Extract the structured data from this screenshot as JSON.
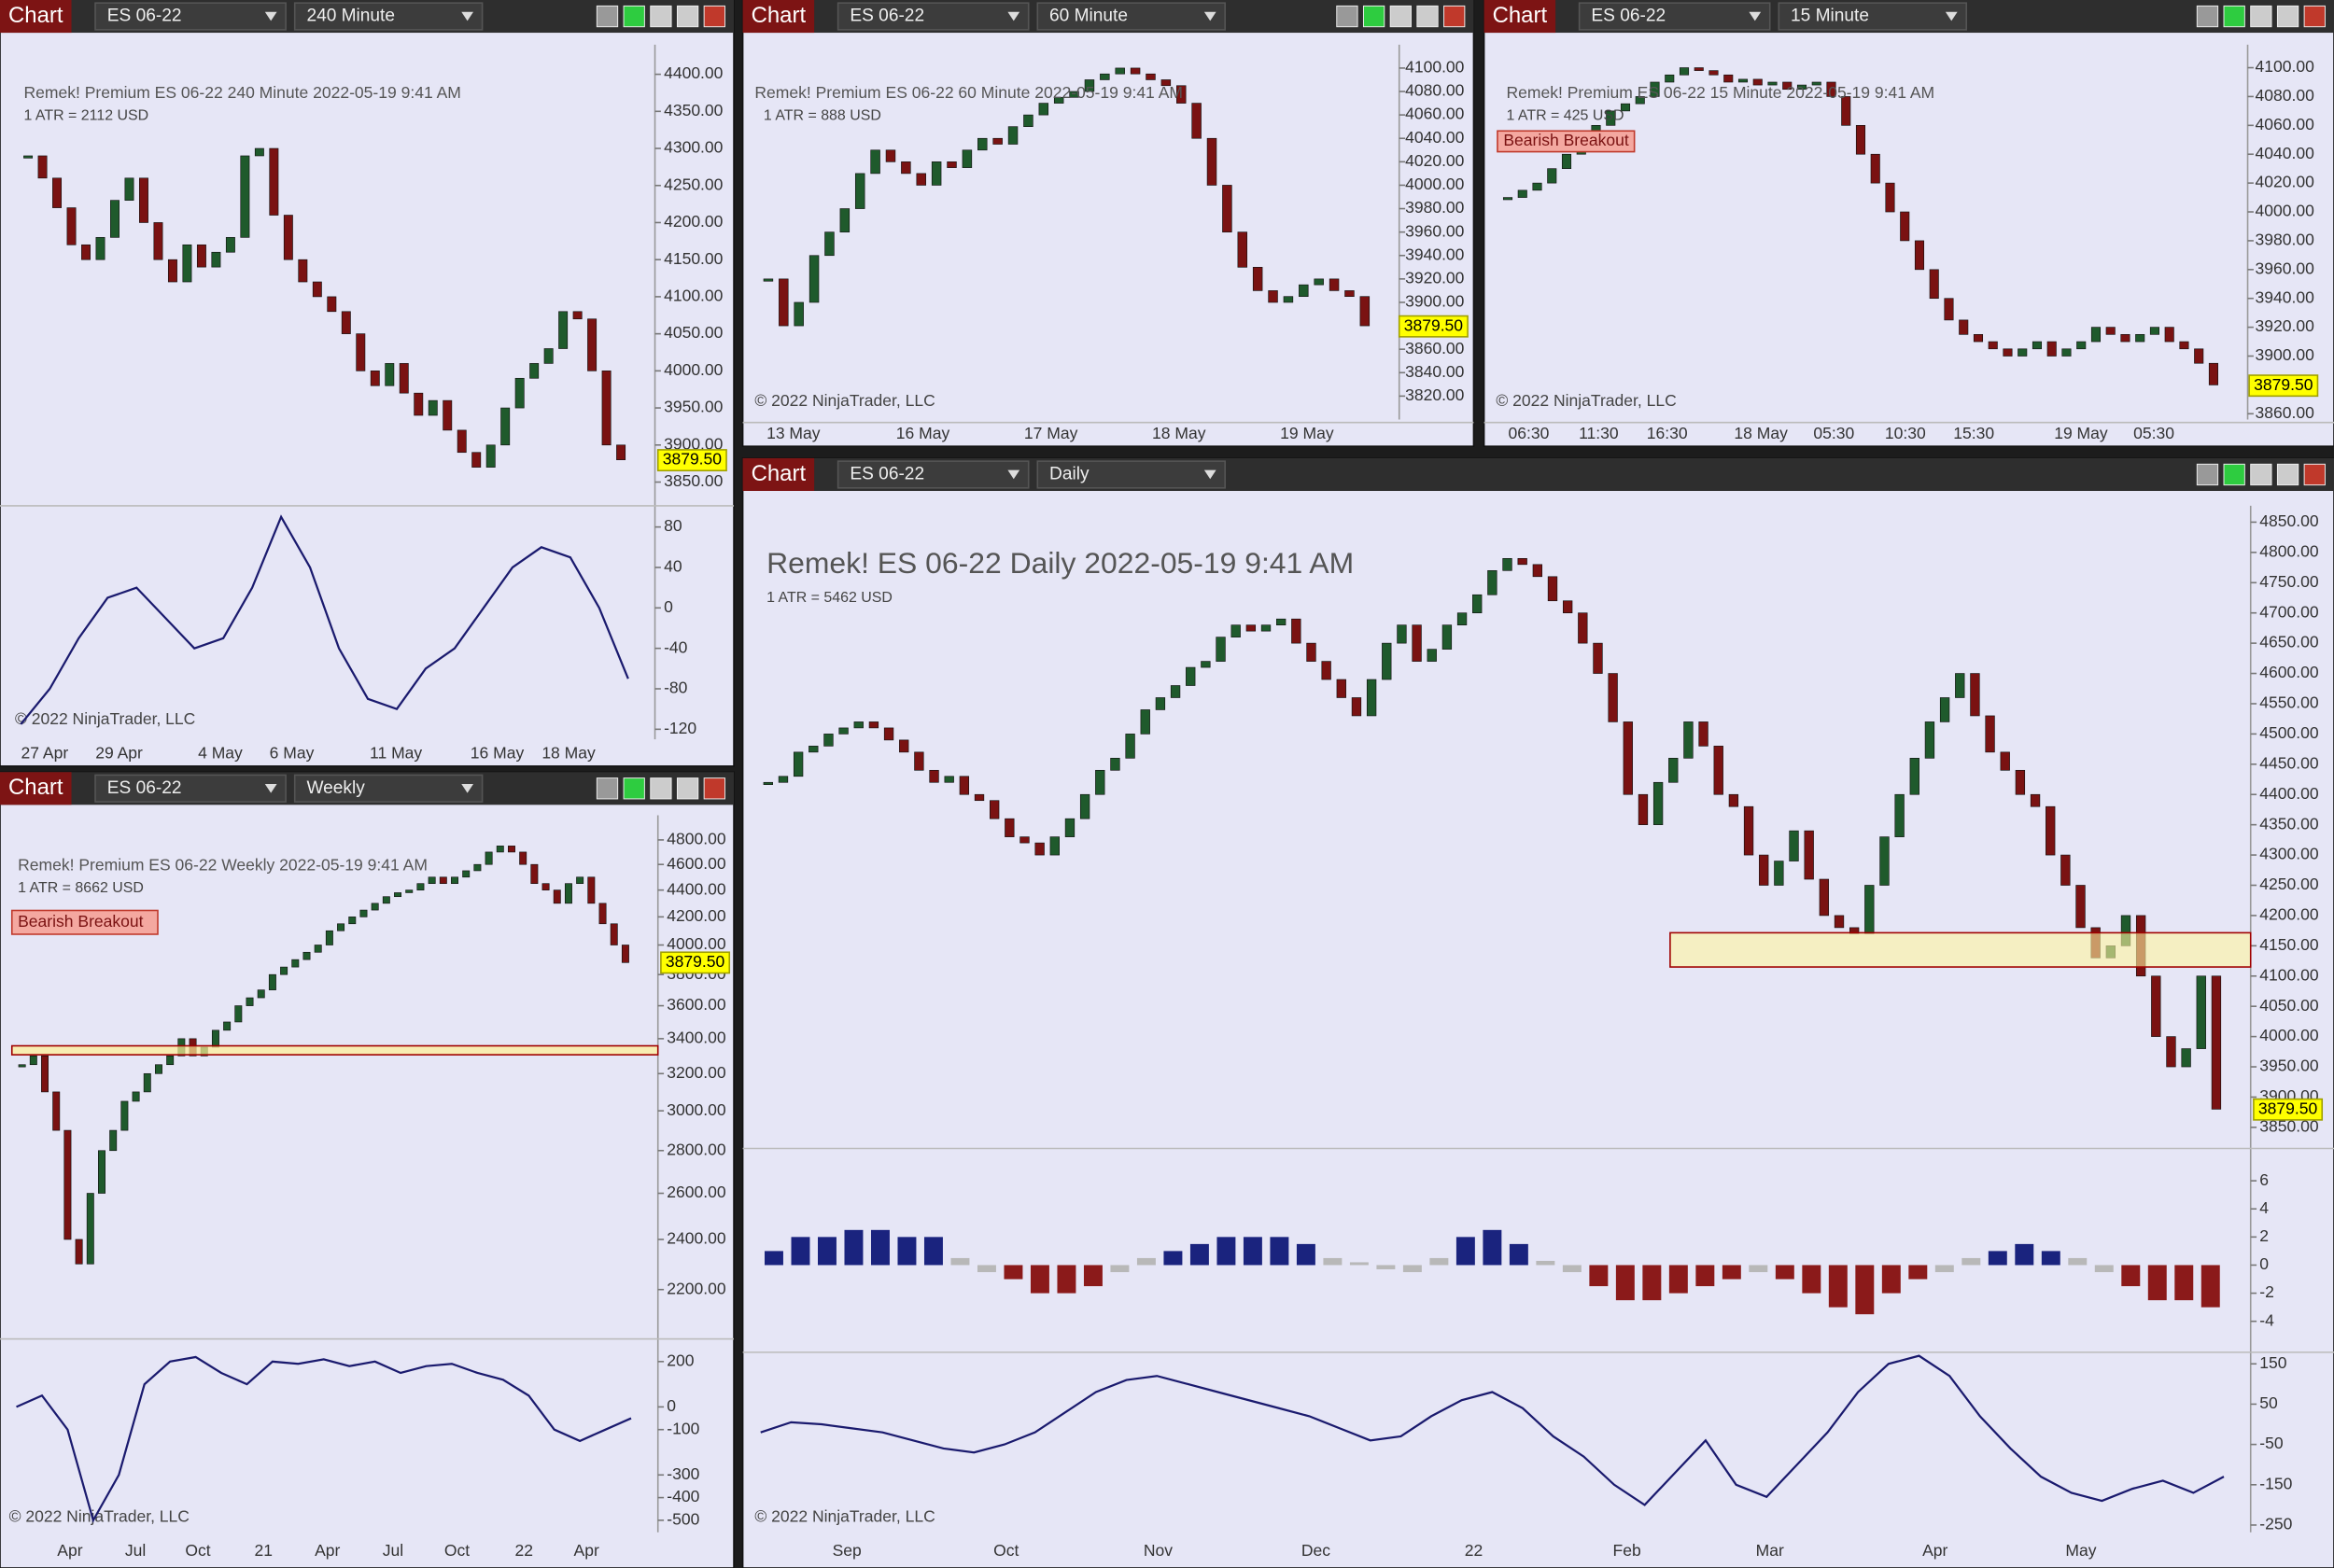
{
  "windows": [
    {
      "toolbar": {
        "label": "Chart",
        "instrument": "ES 06-22",
        "interval": "240 Minute"
      },
      "header": "Remek!  Premium  ES 06-22  240 Minute  2022-05-19 9:41 AM",
      "atr": "1 ATR = 2112 USD",
      "copyright": "© 2022 NinjaTrader, LLC",
      "price_flag": {
        "value": 3879.5,
        "label": "3879.50"
      },
      "price_axis": {
        "ylim": [
          3822,
          4440
        ],
        "ticks": [
          {
            "value": 4400,
            "label": "4400.00"
          },
          {
            "value": 4350,
            "label": "4350.00"
          },
          {
            "value": 4300,
            "label": "4300.00"
          },
          {
            "value": 4250,
            "label": "4250.00"
          },
          {
            "value": 4200,
            "label": "4200.00"
          },
          {
            "value": 4150,
            "label": "4150.00"
          },
          {
            "value": 4100,
            "label": "4100.00"
          },
          {
            "value": 4050,
            "label": "4050.00"
          },
          {
            "value": 4000,
            "label": "4000.00"
          },
          {
            "value": 3950,
            "label": "3950.00"
          },
          {
            "value": 3900,
            "label": "3900.00"
          },
          {
            "value": 3850,
            "label": "3850.00"
          }
        ]
      },
      "time_axis": [
        "27 Apr",
        "29 Apr",
        "4 May",
        "6 May",
        "11 May",
        "16 May",
        "18 May"
      ],
      "closes": [
        4290,
        4260,
        4220,
        4170,
        4150,
        4180,
        4230,
        4260,
        4200,
        4150,
        4120,
        4170,
        4140,
        4160,
        4180,
        4290,
        4300,
        4210,
        4150,
        4120,
        4100,
        4080,
        4050,
        4000,
        3980,
        4010,
        3970,
        3940,
        3960,
        3920,
        3890,
        3870,
        3900,
        3950,
        3990,
        4010,
        4030,
        4080,
        4070,
        4000,
        3900,
        3880
      ],
      "oscillator": {
        "ylim": [
          -130,
          98
        ],
        "ticks": [
          80,
          40,
          0,
          -40,
          -80,
          -120
        ],
        "values": [
          -115,
          -80,
          -30,
          10,
          20,
          -10,
          -40,
          -30,
          20,
          90,
          40,
          -40,
          -90,
          -100,
          -60,
          -40,
          0,
          40,
          60,
          50,
          0,
          -70
        ]
      }
    },
    {
      "toolbar": {
        "label": "Chart",
        "instrument": "ES 06-22",
        "interval": "60 Minute"
      },
      "header": "Remek!  Premium  ES 06-22  60 Minute  2022-05-19 9:41 AM",
      "atr": "1 ATR = 888 USD",
      "copyright": "© 2022 NinjaTrader, LLC",
      "price_flag": {
        "value": 3879.5,
        "label": "3879.50"
      },
      "price_axis": {
        "ylim": [
          3800,
          4120
        ],
        "ticks": [
          {
            "value": 4100,
            "label": "4100.00"
          },
          {
            "value": 4080,
            "label": "4080.00"
          },
          {
            "value": 4060,
            "label": "4060.00"
          },
          {
            "value": 4040,
            "label": "4040.00"
          },
          {
            "value": 4020,
            "label": "4020.00"
          },
          {
            "value": 4000,
            "label": "4000.00"
          },
          {
            "value": 3980,
            "label": "3980.00"
          },
          {
            "value": 3960,
            "label": "3960.00"
          },
          {
            "value": 3940,
            "label": "3940.00"
          },
          {
            "value": 3920,
            "label": "3920.00"
          },
          {
            "value": 3900,
            "label": "3900.00"
          },
          {
            "value": 3860,
            "label": "3860.00"
          },
          {
            "value": 3840,
            "label": "3840.00"
          },
          {
            "value": 3820,
            "label": "3820.00"
          }
        ]
      },
      "time_axis": [
        "13 May",
        "16 May",
        "17 May",
        "18 May",
        "19 May"
      ],
      "closes": [
        3920,
        3880,
        3900,
        3940,
        3960,
        3980,
        4010,
        4030,
        4020,
        4010,
        4000,
        4020,
        4015,
        4030,
        4040,
        4035,
        4050,
        4060,
        4070,
        4075,
        4080,
        4090,
        4095,
        4100,
        4095,
        4090,
        4085,
        4070,
        4040,
        4000,
        3960,
        3930,
        3910,
        3900,
        3905,
        3915,
        3920,
        3910,
        3905,
        3880
      ]
    },
    {
      "toolbar": {
        "label": "Chart",
        "instrument": "ES 06-22",
        "interval": "15 Minute"
      },
      "header": "Remek!  Premium  ES 06-22  15 Minute  2022-05-19 9:41 AM",
      "atr": "1 ATR = 425 USD",
      "annotation": "Bearish Breakout",
      "copyright": "© 2022 NinjaTrader, LLC",
      "price_flag": {
        "value": 3879.5,
        "label": "3879.50"
      },
      "price_axis": {
        "ylim": [
          3856,
          4116
        ],
        "ticks": [
          {
            "value": 4100,
            "label": "4100.00"
          },
          {
            "value": 4080,
            "label": "4080.00"
          },
          {
            "value": 4060,
            "label": "4060.00"
          },
          {
            "value": 4040,
            "label": "4040.00"
          },
          {
            "value": 4020,
            "label": "4020.00"
          },
          {
            "value": 4000,
            "label": "4000.00"
          },
          {
            "value": 3980,
            "label": "3980.00"
          },
          {
            "value": 3960,
            "label": "3960.00"
          },
          {
            "value": 3940,
            "label": "3940.00"
          },
          {
            "value": 3920,
            "label": "3920.00"
          },
          {
            "value": 3900,
            "label": "3900.00"
          },
          {
            "value": 3860,
            "label": "3860.00"
          }
        ]
      },
      "time_axis": [
        "06:30",
        "11:30",
        "16:30",
        "18 May",
        "05:30",
        "10:30",
        "15:30",
        "19 May",
        "05:30"
      ],
      "closes": [
        4010,
        4015,
        4020,
        4030,
        4040,
        4050,
        4060,
        4070,
        4075,
        4080,
        4090,
        4095,
        4100,
        4098,
        4095,
        4090,
        4092,
        4088,
        4090,
        4085,
        4088,
        4090,
        4080,
        4060,
        4040,
        4020,
        4000,
        3980,
        3960,
        3940,
        3925,
        3915,
        3910,
        3905,
        3900,
        3905,
        3910,
        3900,
        3905,
        3910,
        3920,
        3915,
        3910,
        3915,
        3920,
        3910,
        3905,
        3895,
        3880
      ]
    },
    {
      "toolbar": {
        "label": "Chart",
        "instrument": "ES 06-22",
        "interval": "Weekly"
      },
      "header": "Remek!  Premium  ES 06-22  Weekly  2022-05-19 9:41 AM",
      "atr": "1 ATR = 8662 USD",
      "annotation": "Bearish Breakout",
      "copyright": "© 2022 NinjaTrader, LLC",
      "price_flag": {
        "value": 3879.5,
        "label": "3879.50"
      },
      "price_axis": {
        "log": true,
        "ylim": [
          2030,
          5010
        ],
        "ticks": [
          {
            "value": 4800,
            "label": "4800.00"
          },
          {
            "value": 4600,
            "label": "4600.00"
          },
          {
            "value": 4400,
            "label": "4400.00"
          },
          {
            "value": 4200,
            "label": "4200.00"
          },
          {
            "value": 4000,
            "label": "4000.00"
          },
          {
            "value": 3800,
            "label": "3800.00"
          },
          {
            "value": 3600,
            "label": "3600.00"
          },
          {
            "value": 3400,
            "label": "3400.00"
          },
          {
            "value": 3200,
            "label": "3200.00"
          },
          {
            "value": 3000,
            "label": "3000.00"
          },
          {
            "value": 2800,
            "label": "2800.00"
          },
          {
            "value": 2600,
            "label": "2600.00"
          },
          {
            "value": 2400,
            "label": "2400.00"
          },
          {
            "value": 2200,
            "label": "2200.00"
          }
        ]
      },
      "time_axis": [
        "Apr",
        "Jul",
        "Oct",
        "21",
        "Apr",
        "Jul",
        "Oct",
        "22",
        "Apr"
      ],
      "closes": [
        3250,
        3300,
        3100,
        2900,
        2400,
        2300,
        2600,
        2800,
        2900,
        3050,
        3100,
        3200,
        3250,
        3300,
        3400,
        3300,
        3350,
        3450,
        3500,
        3600,
        3650,
        3700,
        3800,
        3850,
        3900,
        3950,
        4000,
        4100,
        4150,
        4200,
        4250,
        4300,
        4350,
        4380,
        4400,
        4450,
        4500,
        4450,
        4500,
        4550,
        4600,
        4700,
        4750,
        4700,
        4600,
        4450,
        4400,
        4300,
        4450,
        4500,
        4300,
        4150,
        4000,
        3880
      ],
      "oscillator": {
        "ylim": [
          -553,
          300
        ],
        "ticks": [
          200,
          0,
          -100,
          -300,
          -400,
          -500
        ],
        "values": [
          0,
          50,
          -100,
          -500,
          -300,
          100,
          200,
          220,
          150,
          100,
          200,
          190,
          210,
          180,
          200,
          150,
          180,
          190,
          150,
          120,
          50,
          -100,
          -150,
          -100,
          -50
        ]
      }
    },
    {
      "toolbar": {
        "label": "Chart",
        "instrument": "ES 06-22",
        "interval": "Daily"
      },
      "header": "Remek!  ES 06-22  Daily  2022-05-19 9:41 AM",
      "atr": "1 ATR = 5462 USD",
      "copyright": "© 2022 NinjaTrader, LLC",
      "price_flag": {
        "value": 3879.5,
        "label": "3879.50"
      },
      "price_axis": {
        "ylim": [
          3820,
          4877
        ],
        "ticks": [
          {
            "value": 4850,
            "label": "4850.00"
          },
          {
            "value": 4800,
            "label": "4800.00"
          },
          {
            "value": 4750,
            "label": "4750.00"
          },
          {
            "value": 4700,
            "label": "4700.00"
          },
          {
            "value": 4650,
            "label": "4650.00"
          },
          {
            "value": 4600,
            "label": "4600.00"
          },
          {
            "value": 4550,
            "label": "4550.00"
          },
          {
            "value": 4500,
            "label": "4500.00"
          },
          {
            "value": 4450,
            "label": "4450.00"
          },
          {
            "value": 4400,
            "label": "4400.00"
          },
          {
            "value": 4350,
            "label": "4350.00"
          },
          {
            "value": 4300,
            "label": "4300.00"
          },
          {
            "value": 4250,
            "label": "4250.00"
          },
          {
            "value": 4200,
            "label": "4200.00"
          },
          {
            "value": 4150,
            "label": "4150.00"
          },
          {
            "value": 4100,
            "label": "4100.00"
          },
          {
            "value": 4050,
            "label": "4050.00"
          },
          {
            "value": 4000,
            "label": "4000.00"
          },
          {
            "value": 3950,
            "label": "3950.00"
          },
          {
            "value": 3900,
            "label": "3900.00"
          },
          {
            "value": 3850,
            "label": "3850.00"
          }
        ]
      },
      "time_axis": [
        "Sep",
        "Oct",
        "Nov",
        "Dec",
        "22",
        "Feb",
        "Mar",
        "Apr",
        "May"
      ],
      "closes": [
        4420,
        4430,
        4470,
        4480,
        4500,
        4510,
        4520,
        4510,
        4490,
        4470,
        4440,
        4420,
        4430,
        4400,
        4390,
        4360,
        4330,
        4320,
        4300,
        4330,
        4360,
        4400,
        4440,
        4460,
        4500,
        4540,
        4560,
        4580,
        4610,
        4620,
        4660,
        4680,
        4670,
        4680,
        4690,
        4650,
        4620,
        4590,
        4560,
        4530,
        4590,
        4650,
        4680,
        4620,
        4640,
        4680,
        4700,
        4730,
        4770,
        4790,
        4780,
        4760,
        4720,
        4700,
        4650,
        4600,
        4520,
        4400,
        4350,
        4420,
        4460,
        4520,
        4480,
        4400,
        4380,
        4300,
        4250,
        4290,
        4340,
        4260,
        4200,
        4180,
        4170,
        4250,
        4330,
        4400,
        4460,
        4520,
        4560,
        4600,
        4530,
        4470,
        4440,
        4400,
        4380,
        4300,
        4250,
        4180,
        4130,
        4150,
        4200,
        4100,
        4000,
        3950,
        3980,
        4100,
        3880
      ],
      "histogram": {
        "ylim": [
          -6.1,
          8.3
        ],
        "ticks": [
          6,
          4,
          2,
          0,
          -2,
          -4
        ],
        "values": [
          1,
          2,
          2,
          2.5,
          2.5,
          2,
          2,
          0.5,
          -0.5,
          -1,
          -2,
          -2,
          -1.5,
          -0.5,
          0.5,
          1,
          1.5,
          2,
          2,
          2,
          1.5,
          0.5,
          0.2,
          -0.3,
          -0.5,
          0.5,
          2,
          2.5,
          1.5,
          0.3,
          -0.5,
          -1.5,
          -2.5,
          -2.5,
          -2,
          -1.5,
          -1,
          -0.5,
          -1,
          -2,
          -3,
          -3.5,
          -2,
          -1,
          -0.5,
          0.5,
          1,
          1.5,
          1,
          0.5,
          -0.5,
          -1.5,
          -2.5,
          -2.5,
          -3
        ]
      },
      "oscillator": {
        "ylim": [
          -268,
          175
        ],
        "ticks": [
          150,
          50,
          -50,
          -150,
          -250
        ],
        "values": [
          -20,
          5,
          0,
          -10,
          -20,
          -40,
          -60,
          -70,
          -50,
          -20,
          30,
          80,
          110,
          120,
          100,
          80,
          60,
          40,
          20,
          -10,
          -40,
          -30,
          20,
          60,
          80,
          40,
          -30,
          -80,
          -150,
          -200,
          -120,
          -40,
          -150,
          -180,
          -100,
          -20,
          80,
          150,
          170,
          120,
          20,
          -60,
          -130,
          -170,
          -190,
          -160,
          -140,
          -170,
          -130
        ]
      }
    }
  ]
}
